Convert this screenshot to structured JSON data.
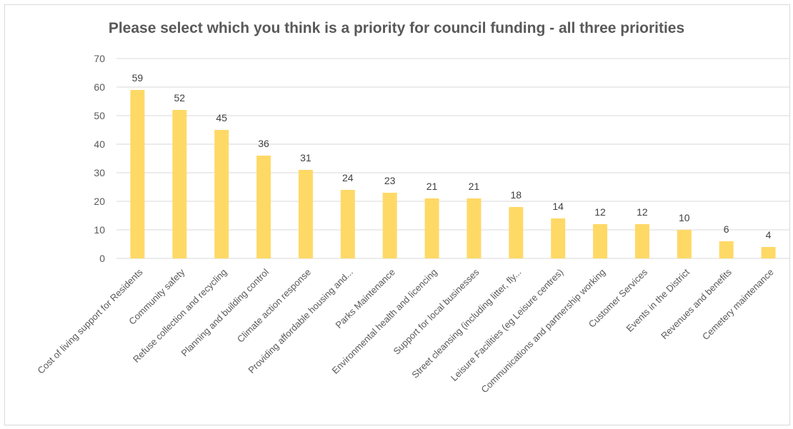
{
  "chart_data": {
    "type": "bar",
    "title": "Please select which you think is a priority for council funding - all three priorities",
    "categories": [
      "Cost of living support for Residents",
      "Community safety",
      "Refuse collection and recycling",
      "Planning and building control",
      "Climate action response",
      "Providing affordable housing and...",
      "Parks Maintenance",
      "Environmental health and licencing",
      "Support for local businesses",
      "Street cleansing (including litter, fly...",
      "Leisure Facilities (eg Leisure centres)",
      "Communications and partnership working",
      "Customer Services",
      "Events in the District",
      "Revenues and benefits",
      "Cemetery maintenance"
    ],
    "values": [
      59,
      52,
      45,
      36,
      31,
      24,
      23,
      21,
      21,
      18,
      14,
      12,
      12,
      10,
      6,
      4
    ],
    "yticks": [
      0,
      10,
      20,
      30,
      40,
      50,
      60,
      70
    ],
    "ylim": [
      0,
      70
    ],
    "grid": true,
    "bar_color": "#FFD966",
    "grid_color": "#d9d9d9"
  }
}
